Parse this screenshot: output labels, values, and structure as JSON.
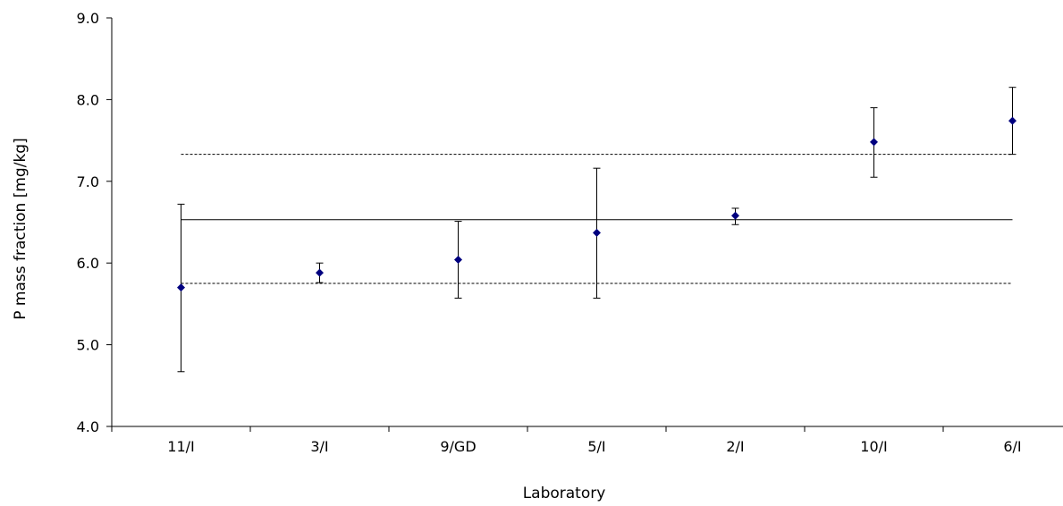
{
  "chart_data": {
    "type": "scatter",
    "title": "",
    "xlabel": "Laboratory",
    "ylabel": "P mass fraction [mg/kg]",
    "ylim": [
      4.0,
      9.0
    ],
    "ytick_step": 1.0,
    "ytick_labels": [
      "4.0",
      "5.0",
      "6.0",
      "7.0",
      "8.0",
      "9.0"
    ],
    "categories": [
      "11/I",
      "3/I",
      "9/GD",
      "5/I",
      "2/I",
      "10/I",
      "6/I"
    ],
    "series": [
      {
        "values": [
          5.7,
          5.88,
          6.04,
          6.37,
          6.58,
          7.48,
          7.74
        ],
        "error_low": [
          4.67,
          5.76,
          5.57,
          5.57,
          6.47,
          7.05,
          7.33
        ],
        "error_high": [
          6.72,
          6.0,
          6.51,
          7.16,
          6.67,
          7.9,
          8.15
        ]
      }
    ],
    "reference_lines": [
      {
        "style": "solid",
        "value": 6.53
      },
      {
        "style": "dashed",
        "value": 7.33
      },
      {
        "style": "dashed",
        "value": 5.75
      }
    ],
    "grid": false,
    "legend": "none",
    "colors": {
      "marker": "#00007f",
      "axis": "#000000",
      "errorbar": "#000000",
      "reference": "#000000"
    }
  }
}
